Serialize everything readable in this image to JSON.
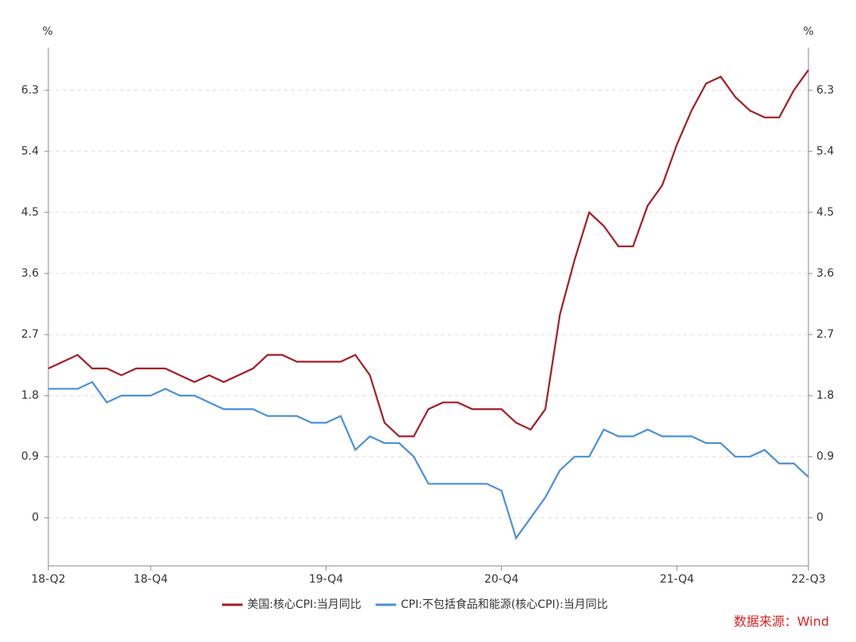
{
  "chart_data": {
    "type": "line",
    "y_unit": "%",
    "y2_unit": "%",
    "categories": [
      "18-Q2",
      null,
      null,
      null,
      null,
      null,
      null,
      "18-Q4",
      null,
      null,
      null,
      null,
      null,
      null,
      null,
      null,
      null,
      null,
      null,
      "19-Q4",
      null,
      null,
      null,
      null,
      null,
      null,
      null,
      null,
      null,
      null,
      null,
      "20-Q4",
      null,
      null,
      null,
      null,
      null,
      null,
      null,
      null,
      null,
      null,
      null,
      "21-Q4",
      null,
      null,
      null,
      null,
      null,
      null,
      null,
      null,
      "22-Q3"
    ],
    "series": [
      {
        "name": "美国:核心CPI:当月同比",
        "color": "#a61c24",
        "values": [
          2.2,
          2.3,
          2.4,
          2.2,
          2.2,
          2.1,
          2.2,
          2.2,
          2.2,
          2.1,
          2.0,
          2.1,
          2.0,
          2.1,
          2.2,
          2.4,
          2.4,
          2.3,
          2.3,
          2.3,
          2.3,
          2.4,
          2.1,
          1.4,
          1.2,
          1.2,
          1.6,
          1.7,
          1.7,
          1.6,
          1.6,
          1.6,
          1.4,
          1.3,
          1.6,
          3.0,
          3.8,
          4.5,
          4.3,
          4.0,
          4.0,
          4.6,
          4.9,
          5.5,
          6.0,
          6.4,
          6.5,
          6.2,
          6.0,
          5.9,
          5.9,
          6.3,
          6.6
        ]
      },
      {
        "name": "CPI:不包括食品和能源(核心CPI):当月同比",
        "color": "#4a90d9",
        "values": [
          1.9,
          1.9,
          1.9,
          2.0,
          1.7,
          1.8,
          1.8,
          1.8,
          1.9,
          1.8,
          1.8,
          1.7,
          1.6,
          1.6,
          1.6,
          1.5,
          1.5,
          1.5,
          1.4,
          1.4,
          1.5,
          1.0,
          1.2,
          1.1,
          1.1,
          0.9,
          0.5,
          0.5,
          0.5,
          0.5,
          0.5,
          0.4,
          -0.3,
          0.0,
          0.3,
          0.7,
          0.9,
          0.9,
          1.3,
          1.2,
          1.2,
          1.3,
          1.2,
          1.2,
          1.2,
          1.1,
          1.1,
          0.9,
          0.9,
          1.0,
          0.8,
          0.8,
          0.6
        ]
      }
    ],
    "ylim": [
      -0.71,
      6.93
    ],
    "yticks": [
      0,
      0.9,
      1.8,
      2.7,
      3.6,
      4.5,
      5.4,
      6.3
    ],
    "y2lim": [
      -0.71,
      6.93
    ],
    "y2ticks": [
      0,
      0.9,
      1.8,
      2.7,
      3.6,
      4.5,
      5.4,
      6.3
    ],
    "grid": true,
    "source": "数据来源：Wind"
  }
}
